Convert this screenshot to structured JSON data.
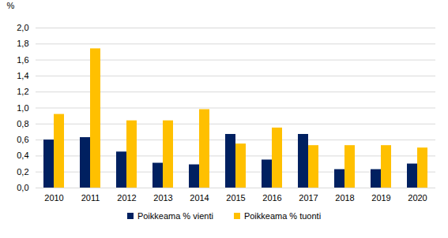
{
  "chart_data": {
    "type": "bar",
    "y_label": "%",
    "categories": [
      "2010",
      "2011",
      "2012",
      "2013",
      "2014",
      "2015",
      "2016",
      "2017",
      "2018",
      "2019",
      "2020"
    ],
    "series": [
      {
        "name": "Poikkeama % vienti",
        "color": "#002060",
        "values": [
          0.6,
          0.63,
          0.45,
          0.31,
          0.29,
          0.67,
          0.35,
          0.67,
          0.23,
          0.23,
          0.3
        ]
      },
      {
        "name": "Poikkeama % tuonti",
        "color": "#ffc000",
        "values": [
          0.92,
          1.74,
          0.84,
          0.84,
          0.98,
          0.55,
          0.75,
          0.53,
          0.53,
          0.53,
          0.5
        ]
      }
    ],
    "ylim": [
      0,
      2.0
    ],
    "yticks": [
      {
        "value": 0,
        "label": "0,0"
      },
      {
        "value": 0.2,
        "label": "0,2"
      },
      {
        "value": 0.4,
        "label": "0,4"
      },
      {
        "value": 0.6,
        "label": "0,6"
      },
      {
        "value": 0.8,
        "label": "0,8"
      },
      {
        "value": 1.0,
        "label": "1,0"
      },
      {
        "value": 1.2,
        "label": "1,2"
      },
      {
        "value": 1.4,
        "label": "1,4"
      },
      {
        "value": 1.6,
        "label": "1,6"
      },
      {
        "value": 1.8,
        "label": "1,8"
      },
      {
        "value": 2.0,
        "label": "2,0"
      }
    ],
    "grid": true,
    "legend": "bottom"
  }
}
